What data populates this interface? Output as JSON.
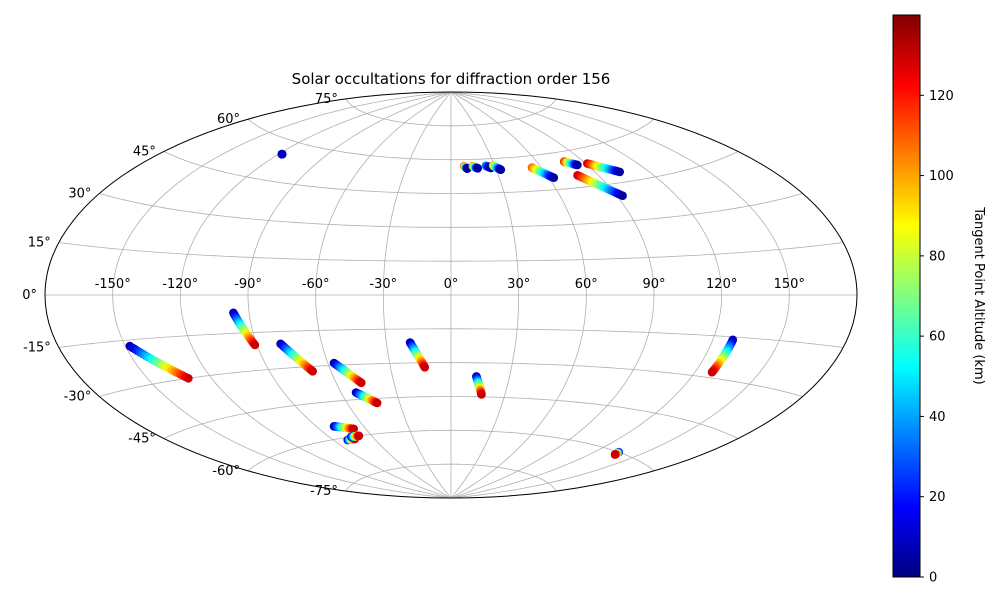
{
  "chart_data": {
    "type": "scatter",
    "projection": "aitoff",
    "title": "Solar occultations for diffraction order 156",
    "xlabel": "",
    "ylabel": "",
    "lon_ticks": [
      "-150°",
      "-120°",
      "-90°",
      "-60°",
      "-30°",
      "0°",
      "30°",
      "60°",
      "90°",
      "120°",
      "150°"
    ],
    "lat_ticks": [
      "75°",
      "60°",
      "45°",
      "30°",
      "15°",
      "0°",
      "-15°",
      "-30°",
      "-45°",
      "-60°",
      "-75°"
    ],
    "grid": true,
    "colorbar": {
      "label": "Tangent Point Altitude (km)",
      "range": [
        0,
        140
      ],
      "ticks": [
        "0",
        "20",
        "40",
        "60",
        "80",
        "100",
        "120"
      ],
      "colormap": "jet",
      "colors": [
        "#000080",
        "#0000ff",
        "#00ffff",
        "#ffff00",
        "#ff0000",
        "#800000"
      ]
    },
    "tracks": [
      {
        "start": [
          -118,
          55
        ],
        "end": [
          -118,
          55
        ],
        "alt": [
          0,
          10
        ]
      },
      {
        "start": [
          9,
          57
        ],
        "end": [
          11,
          56
        ],
        "alt": [
          120,
          5
        ]
      },
      {
        "start": [
          15,
          57
        ],
        "end": [
          18,
          56
        ],
        "alt": [
          110,
          5
        ]
      },
      {
        "start": [
          24,
          57
        ],
        "end": [
          27,
          56
        ],
        "alt": [
          40,
          5
        ]
      },
      {
        "start": [
          29,
          57
        ],
        "end": [
          33,
          55
        ],
        "alt": [
          100,
          5
        ]
      },
      {
        "start": [
          54,
          55
        ],
        "end": [
          63,
          50
        ],
        "alt": [
          110,
          5
        ]
      },
      {
        "start": [
          78,
          56
        ],
        "end": [
          84,
          54
        ],
        "alt": [
          120,
          5
        ]
      },
      {
        "start": [
          78,
          50
        ],
        "end": [
          93,
          40
        ],
        "alt": [
          130,
          5
        ]
      },
      {
        "start": [
          91,
          54
        ],
        "end": [
          104,
          49
        ],
        "alt": [
          130,
          5
        ]
      },
      {
        "start": [
          -97,
          -7
        ],
        "end": [
          -91,
          -20
        ],
        "alt": [
          5,
          130
        ]
      },
      {
        "start": [
          -148,
          -17
        ],
        "end": [
          -131,
          -30
        ],
        "alt": [
          5,
          130
        ]
      },
      {
        "start": [
          -79,
          -20
        ],
        "end": [
          -69,
          -32
        ],
        "alt": [
          5,
          130
        ]
      },
      {
        "start": [
          -57,
          -29
        ],
        "end": [
          -47,
          -38
        ],
        "alt": [
          5,
          130
        ]
      },
      {
        "start": [
          -52,
          -42
        ],
        "end": [
          -43,
          -47
        ],
        "alt": [
          5,
          130
        ]
      },
      {
        "start": [
          -19,
          -21
        ],
        "end": [
          -13,
          -32
        ],
        "alt": [
          5,
          130
        ]
      },
      {
        "start": [
          13,
          -36
        ],
        "end": [
          17,
          -44
        ],
        "alt": [
          5,
          130
        ]
      },
      {
        "start": [
          129,
          -16
        ],
        "end": [
          128,
          -28
        ],
        "alt": [
          5,
          130
        ]
      },
      {
        "start": [
          -79,
          -55
        ],
        "end": [
          -68,
          -57
        ],
        "alt": [
          5,
          130
        ]
      },
      {
        "start": [
          -80,
          -61
        ],
        "end": [
          -74,
          -61
        ],
        "alt": [
          5,
          130
        ]
      },
      {
        "start": [
          -75,
          -60
        ],
        "end": [
          -69,
          -60
        ],
        "alt": [
          5,
          130
        ]
      },
      {
        "start": [
          135,
          -60
        ],
        "end": [
          136,
          -61
        ],
        "alt": [
          5,
          130
        ]
      }
    ]
  }
}
